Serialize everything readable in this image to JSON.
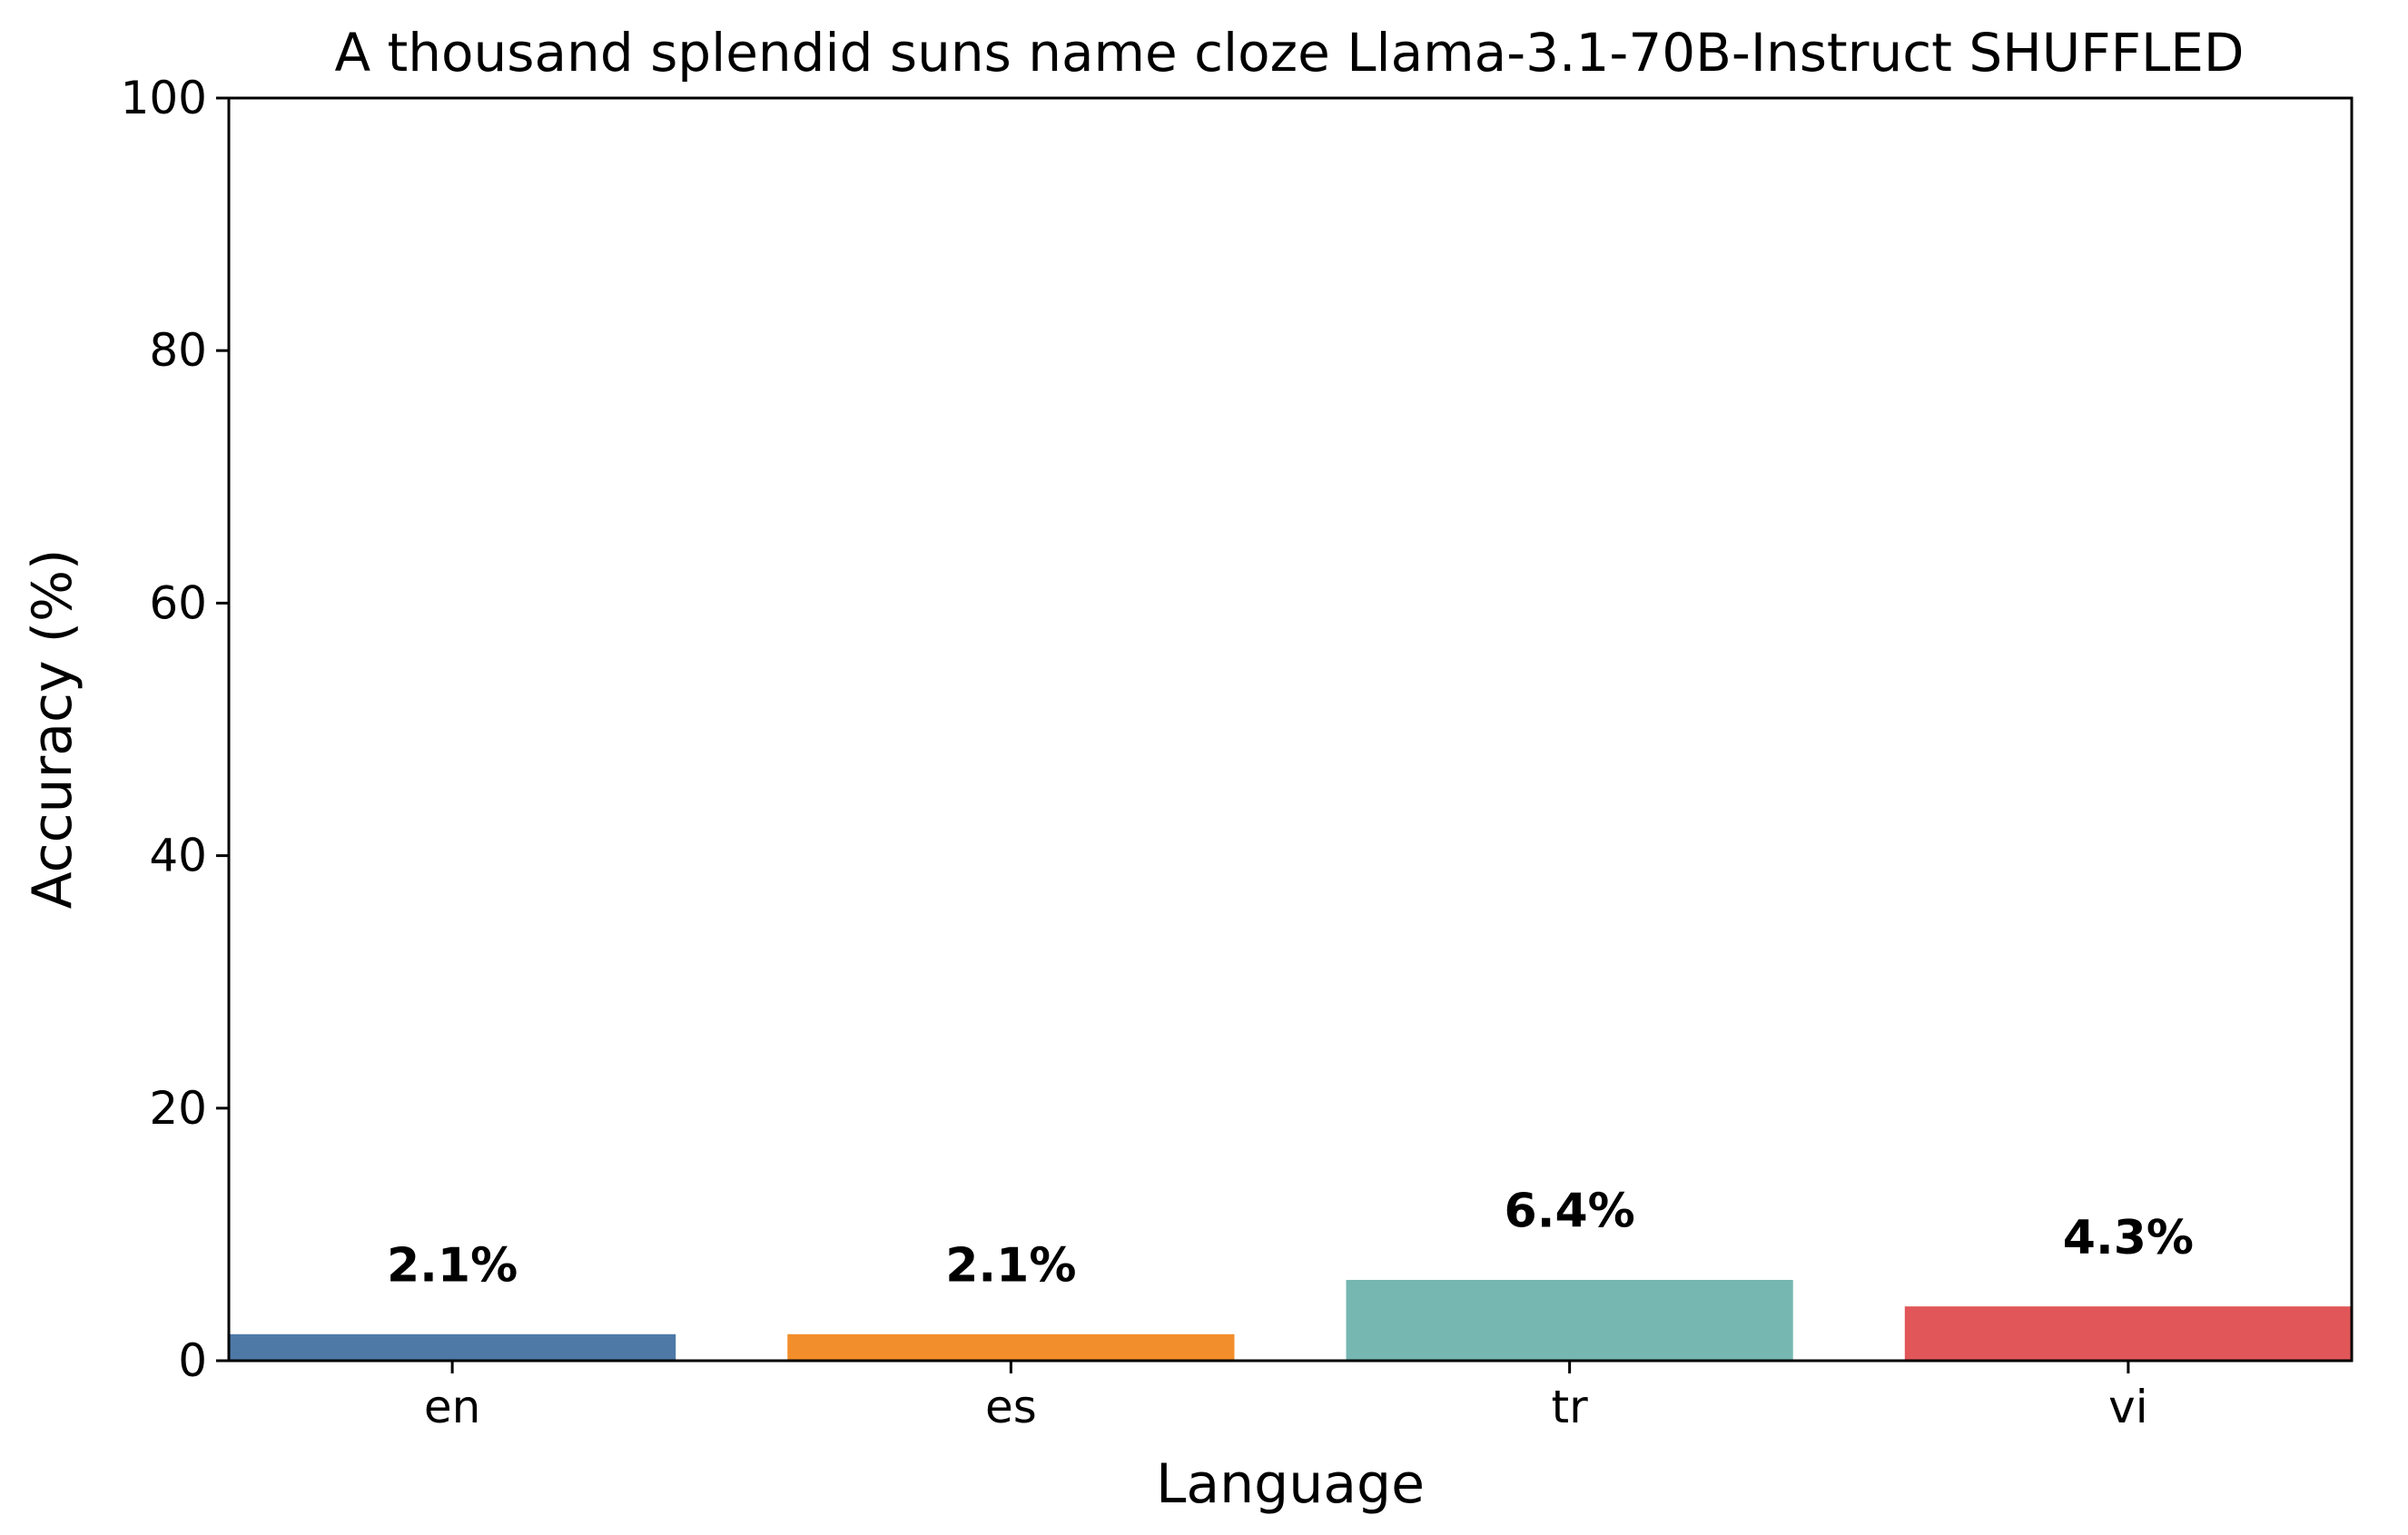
{
  "chart_data": {
    "type": "bar",
    "title": "A thousand splendid suns name cloze Llama-3.1-70B-Instruct SHUFFLED",
    "xlabel": "Language",
    "ylabel": "Accuracy (%)",
    "categories": [
      "en",
      "es",
      "tr",
      "vi"
    ],
    "values": [
      2.1,
      2.1,
      6.4,
      4.3
    ],
    "data_labels": [
      "2.1%",
      "2.1%",
      "6.4%",
      "4.3%"
    ],
    "colors": [
      "#4e79a7",
      "#f28e2b",
      "#76b7b2",
      "#e15759"
    ],
    "ylim": [
      0,
      100
    ],
    "yticks": [
      0,
      20,
      40,
      60,
      80,
      100
    ],
    "grid": false,
    "legend": false
  }
}
